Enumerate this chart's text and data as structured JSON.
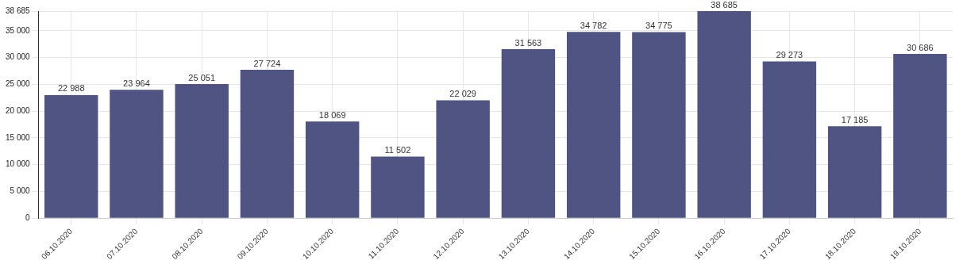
{
  "chart_data": {
    "type": "bar",
    "categories": [
      "06.10.2020",
      "07.10.2020",
      "08.10.2020",
      "09.10.2020",
      "10.10.2020",
      "11.10.2020",
      "12.10.2020",
      "13.10.2020",
      "14.10.2020",
      "15.10.2020",
      "16.10.2020",
      "17.10.2020",
      "18.10.2020",
      "19.10.2020"
    ],
    "values": [
      22988,
      23964,
      25051,
      27724,
      18069,
      11502,
      22029,
      31563,
      34782,
      34775,
      38685,
      29273,
      17185,
      30686
    ],
    "color": "#4f5483",
    "ylim": [
      0,
      38685
    ],
    "yticks": [
      0,
      {
        "value": 5000,
        "label": "5 000"
      },
      {
        "value": 10000,
        "label": "10 000"
      },
      {
        "value": 15000,
        "label": "15 000"
      },
      {
        "value": 20000,
        "label": "20 000"
      },
      {
        "value": 25000,
        "label": "25 000"
      },
      {
        "value": 30000,
        "label": "30 000"
      },
      {
        "value": 35000,
        "label": "35 000"
      },
      {
        "value": 38685,
        "label": "38 685"
      }
    ],
    "grid": true,
    "data_labels": true
  }
}
